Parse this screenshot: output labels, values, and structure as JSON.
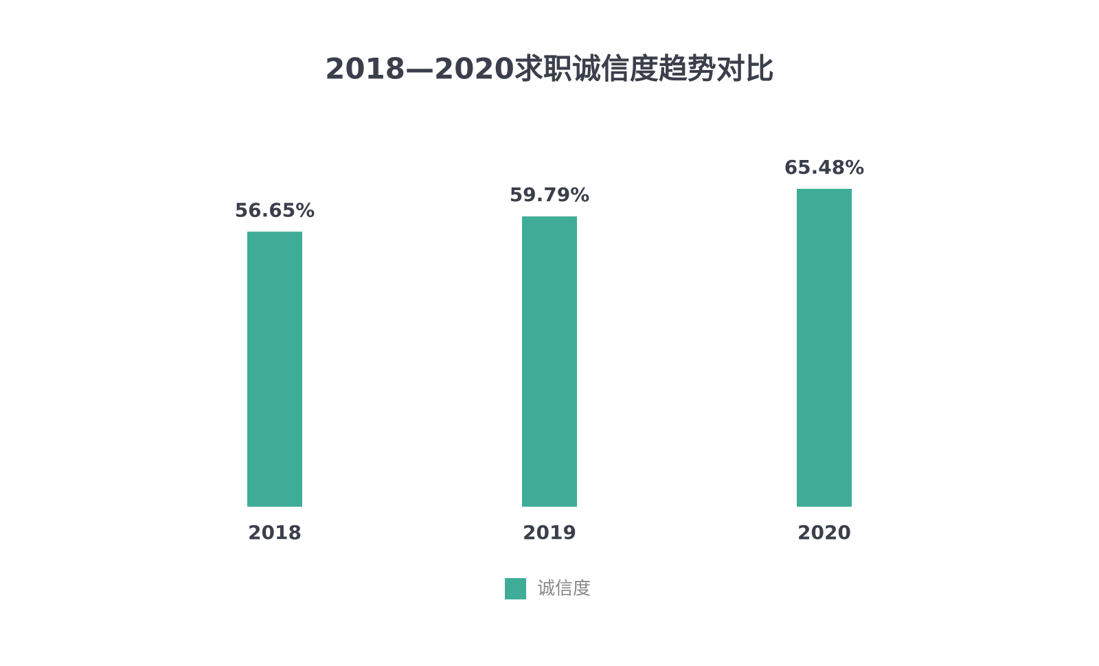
{
  "chart_data": {
    "type": "bar",
    "title": "2018—2020求职诚信度趋势对比",
    "categories": [
      "2018",
      "2019",
      "2020"
    ],
    "series": [
      {
        "name": "诚信度",
        "color": "#3fac98",
        "values": [
          56.65,
          59.79,
          65.48
        ],
        "value_labels": [
          "56.65%",
          "59.79%",
          "65.48%"
        ]
      }
    ],
    "ylim": [
      0,
      70
    ],
    "legend": "bottom"
  }
}
